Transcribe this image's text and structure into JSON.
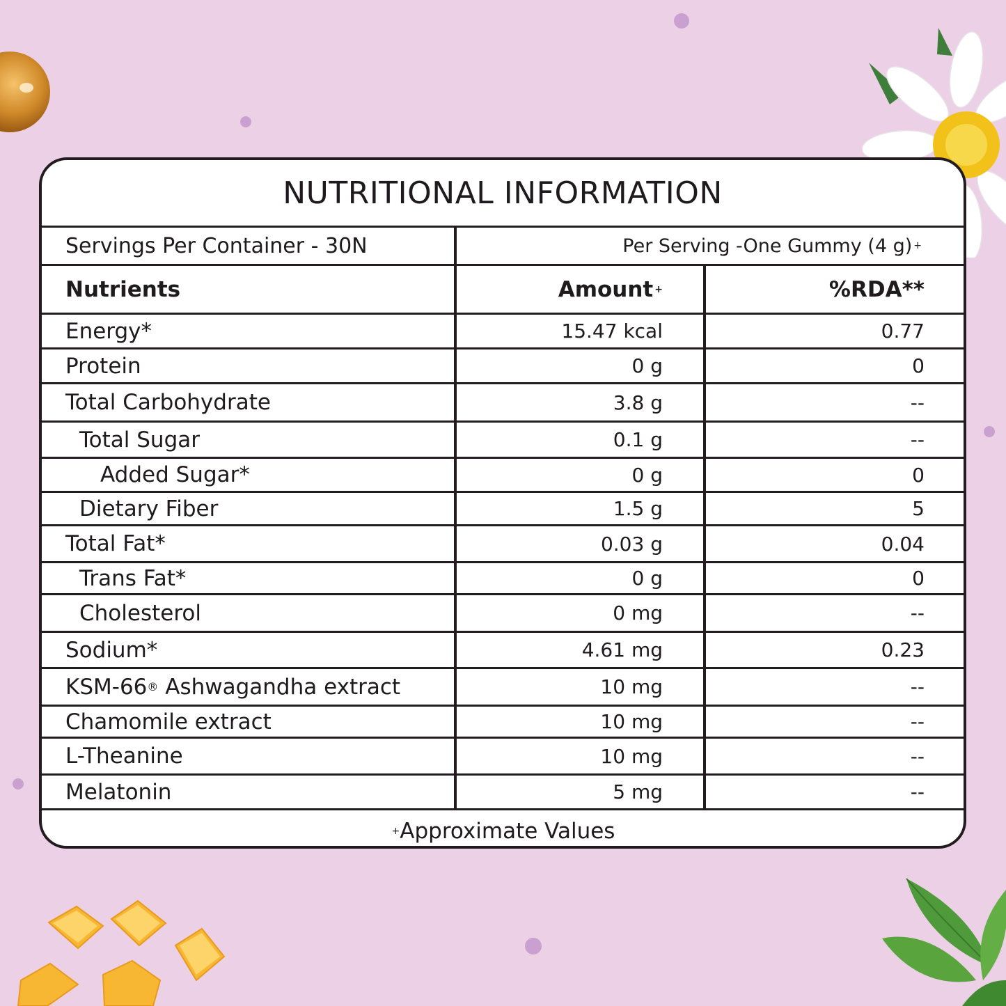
{
  "title": "NUTRITIONAL INFORMATION",
  "servings_per_container": "Servings Per Container - 30N",
  "per_serving": "Per Serving -One Gummy (4 g)",
  "per_serving_mark": "+",
  "headers": {
    "nutrients": "Nutrients",
    "amount": "Amount",
    "amount_mark": "+",
    "rda": "%RDA**"
  },
  "rows": [
    {
      "name": "Energy*",
      "amount": "15.47 kcal",
      "rda": "0.77"
    },
    {
      "name": "Protein",
      "amount": "0 g",
      "rda": "0"
    },
    {
      "name": "Total Carbohydrate",
      "amount": "3.8 g",
      "rda": "--"
    },
    {
      "name": "Total Sugar",
      "amount": "0.1 g",
      "rda": "--"
    },
    {
      "name": "Added Sugar*",
      "amount": "0 g",
      "rda": "0"
    },
    {
      "name": "Dietary Fiber",
      "amount": "1.5 g",
      "rda": "5"
    },
    {
      "name": "Total Fat*",
      "amount": "0.03 g",
      "rda": "0.04"
    },
    {
      "name": "Trans Fat*",
      "amount": "0 g",
      "rda": "0"
    },
    {
      "name": "Cholesterol",
      "amount": "0 mg",
      "rda": "--"
    },
    {
      "name": "Sodium*",
      "amount": "4.61 mg",
      "rda": "0.23"
    },
    {
      "name_prefix": "KSM-66",
      "name_mark": "®",
      "name_suffix": " Ashwagandha extract",
      "amount": "10 mg",
      "rda": "--"
    },
    {
      "name": "Chamomile extract",
      "amount": "10 mg",
      "rda": "--"
    },
    {
      "name": "L-Theanine",
      "amount": "10 mg",
      "rda": "--"
    },
    {
      "name": "Melatonin",
      "amount": "5 mg",
      "rda": "--"
    }
  ],
  "footer_mark": "+",
  "footer": "Approximate Values",
  "colors": {
    "background": "#ecd0e6",
    "border": "#221c20",
    "dots": "#c9a0cf"
  },
  "decorations": [
    "gummy-ball",
    "chamomile-flower",
    "mango-cubes",
    "tea-leaves"
  ]
}
